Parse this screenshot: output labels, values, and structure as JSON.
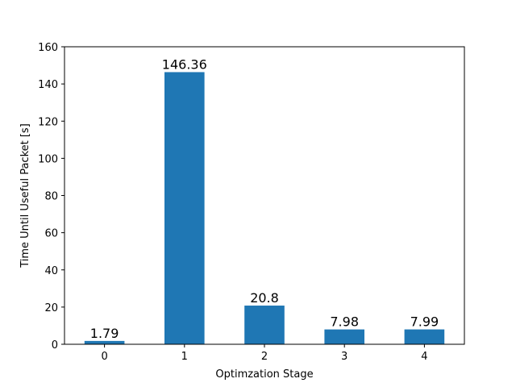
{
  "chart_data": {
    "type": "bar",
    "categories": [
      "0",
      "1",
      "2",
      "3",
      "4"
    ],
    "values": [
      1.79,
      146.36,
      20.8,
      7.98,
      7.99
    ],
    "data_labels": [
      "1.79",
      "146.36",
      "20.8",
      "7.98",
      "7.99"
    ],
    "title": "",
    "xlabel": "Optimzation Stage",
    "ylabel": "Time Until Useful Packet [s]",
    "ylim": [
      0,
      160
    ],
    "yticks": [
      0,
      20,
      40,
      60,
      80,
      100,
      120,
      140,
      160
    ],
    "grid": false,
    "bar_color": "#1f77b4"
  }
}
